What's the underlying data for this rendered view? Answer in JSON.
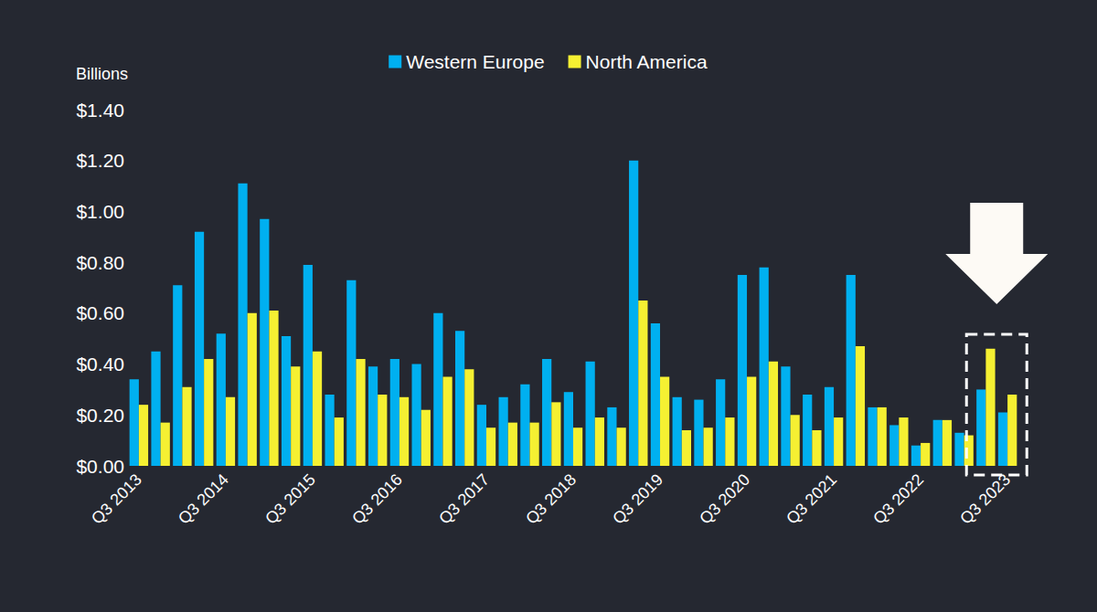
{
  "chart_data": {
    "type": "bar",
    "y_label": "Billions",
    "categories": [
      "Q3 2013",
      null,
      null,
      null,
      "Q3 2014",
      null,
      null,
      null,
      "Q3 2015",
      null,
      null,
      null,
      "Q3 2016",
      null,
      null,
      null,
      "Q3 2017",
      null,
      null,
      null,
      "Q3 2018",
      null,
      null,
      null,
      "Q3 2019",
      null,
      null,
      null,
      "Q3 2020",
      null,
      null,
      null,
      "Q3 2021",
      null,
      null,
      null,
      "Q3 2022",
      null,
      null,
      null,
      "Q3 2023"
    ],
    "series": [
      {
        "name": "Western Europe",
        "color": "#00b0f0",
        "values": [
          0.34,
          0.45,
          0.71,
          0.92,
          0.52,
          1.11,
          0.97,
          0.51,
          0.79,
          0.28,
          0.73,
          0.39,
          0.42,
          0.4,
          0.6,
          0.53,
          0.24,
          0.27,
          0.32,
          0.42,
          0.29,
          0.41,
          0.23,
          1.2,
          0.56,
          0.27,
          0.26,
          0.34,
          0.75,
          0.78,
          0.39,
          0.28,
          0.31,
          0.75,
          0.23,
          0.16,
          0.08,
          0.18,
          0.13,
          0.3,
          0.21
        ]
      },
      {
        "name": "North America",
        "color": "#f5f032",
        "values": [
          0.24,
          0.17,
          0.31,
          0.42,
          0.27,
          0.6,
          0.61,
          0.39,
          0.45,
          0.19,
          0.42,
          0.28,
          0.27,
          0.22,
          0.35,
          0.38,
          0.15,
          0.17,
          0.17,
          0.25,
          0.15,
          0.19,
          0.15,
          0.65,
          0.35,
          0.14,
          0.15,
          0.19,
          0.35,
          0.41,
          0.2,
          0.14,
          0.19,
          0.47,
          0.23,
          0.19,
          0.09,
          0.18,
          0.12,
          0.46,
          0.28
        ]
      }
    ],
    "ylim": [
      0,
      1.4
    ],
    "yticks": [
      {
        "value": 0,
        "label": "$0.00"
      },
      {
        "value": 0.2,
        "label": "$0.20"
      },
      {
        "value": 0.4,
        "label": "$0.40"
      },
      {
        "value": 0.6,
        "label": "$0.60"
      },
      {
        "value": 0.8,
        "label": "$0.80"
      },
      {
        "value": 1.0,
        "label": "$1.00"
      },
      {
        "value": 1.2,
        "label": "$1.20"
      },
      {
        "value": 1.4,
        "label": "$1.40"
      }
    ],
    "grid": false,
    "legend": "top"
  }
}
